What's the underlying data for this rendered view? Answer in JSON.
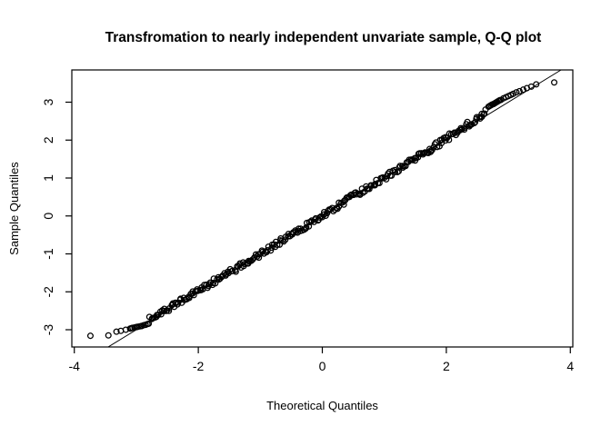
{
  "chart_data": {
    "type": "scatter",
    "subtype": "qq-plot",
    "title": "Transfromation to nearly independent unvariate sample, Q-Q plot",
    "xlabel": "Theoretical Quantiles",
    "ylabel": "Sample Quantiles",
    "xlim": [
      -4.04,
      4.04
    ],
    "ylim": [
      -3.455,
      3.85
    ],
    "x_ticks": [
      -4,
      -2,
      0,
      2,
      4
    ],
    "x_tick_labels": [
      "-4",
      "-2",
      "0",
      "2",
      "4"
    ],
    "y_ticks": [
      -3,
      -2,
      -1,
      0,
      1,
      2,
      3
    ],
    "y_tick_labels": [
      "-3",
      "-2",
      "-1",
      "0",
      "1",
      "2",
      "3"
    ],
    "grid": false,
    "legend": null,
    "colors": {
      "foreground": "#000000",
      "background": "#ffffff"
    },
    "marker": {
      "shape": "open-circle",
      "radius_px": 2.9,
      "stroke_px": 1.25
    },
    "ref_line": {
      "slope": 1,
      "intercept": 0,
      "comment": "qqline, clipped to plot box"
    },
    "dense_band": {
      "comment": "hundreds of overlapping open circles lying on y = x (slightly above the line toward the right tail)",
      "x_from": -2.78,
      "x_to": 2.66,
      "spacing": 0.02,
      "jitter_y": 0.075,
      "jitter_x": 0.012,
      "curve_dev_pos": 0.012,
      "curve_dev_neg": 0.006,
      "wiggle_amp": 0.015,
      "seed": 20240531
    },
    "left_tail_points": [
      [
        -3.74,
        -3.16
      ],
      [
        -3.45,
        -3.15
      ],
      [
        -3.32,
        -3.05
      ],
      [
        -3.25,
        -3.03
      ],
      [
        -3.17,
        -3.0
      ],
      [
        -3.1,
        -2.97
      ],
      [
        -3.08,
        -2.96
      ],
      [
        -3.06,
        -2.95
      ],
      [
        -3.03,
        -2.94
      ],
      [
        -3.0,
        -2.93
      ],
      [
        -2.99,
        -2.925
      ],
      [
        -2.97,
        -2.92
      ],
      [
        -2.94,
        -2.91
      ],
      [
        -2.92,
        -2.905
      ],
      [
        -2.91,
        -2.9
      ],
      [
        -2.88,
        -2.88
      ],
      [
        -2.85,
        -2.87
      ],
      [
        -2.82,
        -2.85
      ],
      [
        -2.8,
        -2.84
      ]
    ],
    "right_tail_points": [
      [
        2.68,
        2.88
      ],
      [
        2.7,
        2.9
      ],
      [
        2.72,
        2.92
      ],
      [
        2.74,
        2.94
      ],
      [
        2.76,
        2.95
      ],
      [
        2.78,
        2.97
      ],
      [
        2.8,
        2.99
      ],
      [
        2.82,
        3.01
      ],
      [
        2.84,
        3.03
      ],
      [
        2.86,
        3.05
      ],
      [
        2.88,
        3.06
      ],
      [
        2.92,
        3.1
      ],
      [
        2.96,
        3.13
      ],
      [
        3.0,
        3.16
      ],
      [
        3.04,
        3.19
      ],
      [
        3.08,
        3.22
      ],
      [
        3.13,
        3.26
      ],
      [
        3.18,
        3.29
      ],
      [
        3.24,
        3.33
      ],
      [
        3.3,
        3.37
      ],
      [
        3.37,
        3.41
      ],
      [
        3.45,
        3.47
      ],
      [
        3.74,
        3.52
      ]
    ]
  }
}
